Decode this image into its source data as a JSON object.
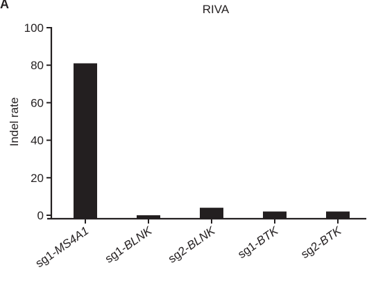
{
  "panel_label": "A",
  "chart_data": {
    "type": "bar",
    "title": "RIVA",
    "xlabel": "",
    "ylabel": "Indel rate",
    "categories": [
      {
        "prefix": "sg1-",
        "gene": "MS4A1"
      },
      {
        "prefix": "sg1-",
        "gene": "BLNK"
      },
      {
        "prefix": "sg2-",
        "gene": "BLNK"
      },
      {
        "prefix": "sg1-",
        "gene": "BTK"
      },
      {
        "prefix": "sg2-",
        "gene": "BTK"
      }
    ],
    "values": [
      81,
      0,
      4,
      2,
      2
    ],
    "ylim": [
      0,
      100
    ],
    "yticks": [
      0,
      20,
      40,
      60,
      80,
      100
    ],
    "bar_color": "#231f20",
    "grid": false
  }
}
